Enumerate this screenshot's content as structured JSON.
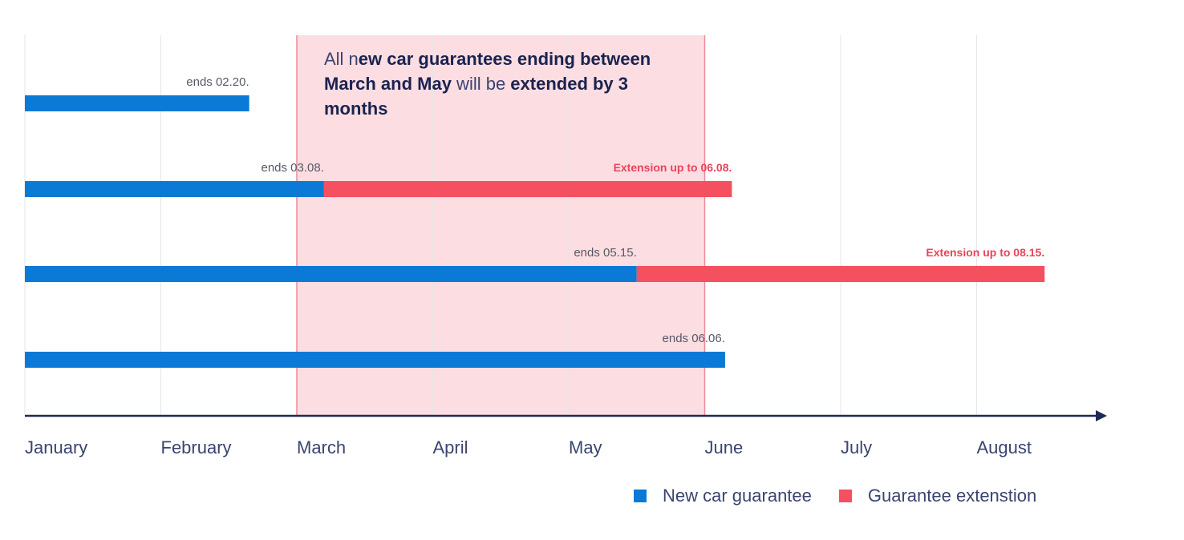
{
  "chart_data": {
    "type": "bar",
    "orientation": "horizontal-timeline",
    "months": [
      "January",
      "February",
      "March",
      "April",
      "May",
      "June",
      "July",
      "August"
    ],
    "highlight_period": {
      "start_month": 2,
      "end_month": 5,
      "color": "#fcdde1",
      "border_color": "#f08a98"
    },
    "annotation": {
      "prefix": "All n",
      "bold1": "ew car guarantees ending between March and May",
      "middle": " will be ",
      "bold2": "extended by 3 months"
    },
    "rows": [
      {
        "guarantee_end": 1.65,
        "guarantee_label": "ends 02.20.",
        "extension_end": null,
        "extension_label": ""
      },
      {
        "guarantee_end": 2.2,
        "guarantee_label": "ends 03.08.",
        "extension_end": 5.2,
        "extension_label": "Extension up to 06.08."
      },
      {
        "guarantee_end": 4.5,
        "guarantee_label": "ends 05.15.",
        "extension_end": 7.5,
        "extension_label": "Extension up to 08.15."
      },
      {
        "guarantee_end": 5.15,
        "guarantee_label": "ends 06.06.",
        "extension_end": null,
        "extension_label": ""
      }
    ],
    "legend": [
      {
        "name": "New car guarantee",
        "color": "#0a7ad6"
      },
      {
        "name": "Guarantee extenstion",
        "color": "#f4505f"
      }
    ],
    "colors": {
      "guarantee": "#0a7ad6",
      "extension": "#f4505f",
      "extension_text": "#e8445a",
      "axis": "#1e2a55",
      "gridline": "#e4e6ea",
      "label_text": "#555a66",
      "month_text": "#3a4470"
    }
  }
}
